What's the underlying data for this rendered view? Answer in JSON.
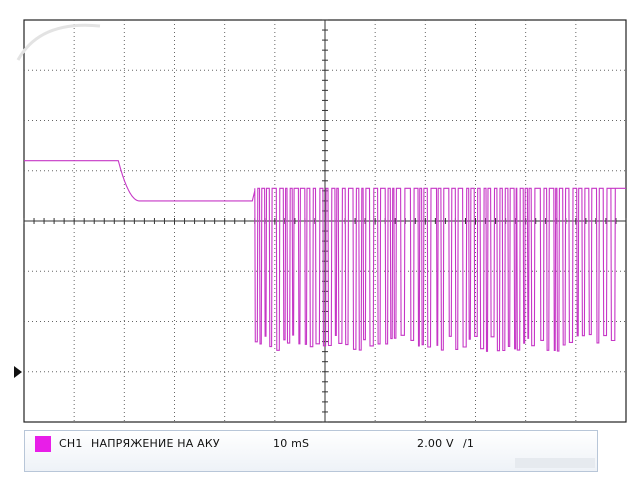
{
  "chart_data": {
    "type": "line",
    "title": "",
    "grid": true,
    "divisions": {
      "x": 12,
      "y": 8
    },
    "ylim_div": [
      -4,
      4
    ],
    "xlim_div": [
      0,
      12
    ],
    "series": [
      {
        "name": "CH1 НАПРЯЖЕНИЕ НА АКУ",
        "color": "#c637c6",
        "baseline_high": 1.2,
        "sag_level": 0.4,
        "sag_start_div": 1.88,
        "sag_end_div": 2.3,
        "sag_flat_end_div": 4.55,
        "oscillation_start_div": 4.6,
        "oscillation_end_div": 11.7,
        "oscillation_top": 0.65,
        "oscillation_bottom": -2.6
      }
    ]
  },
  "channel": {
    "label": "CH1",
    "name": "НАПРЯЖЕНИЕ НА АКУ",
    "timebase": "10 mS",
    "volts": "2.00 V",
    "probe": "/1",
    "color": "#e81ee8"
  }
}
